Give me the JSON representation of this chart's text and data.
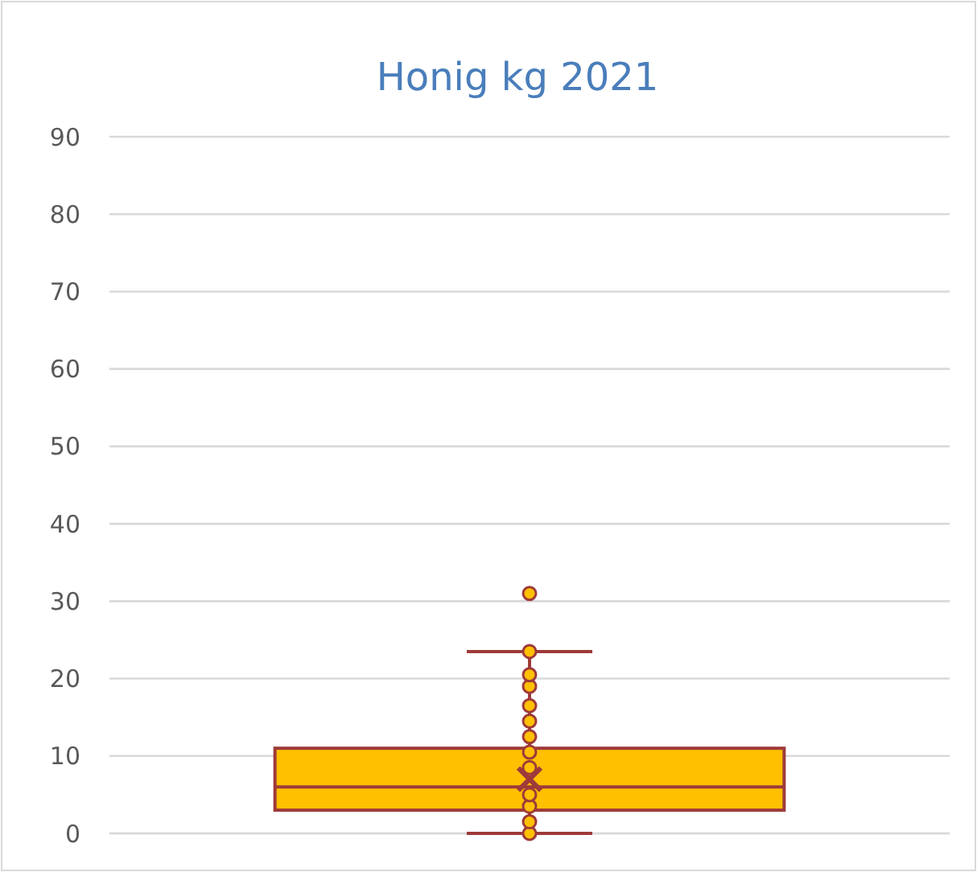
{
  "chart_data": {
    "type": "box",
    "title": "Honig kg 2021",
    "categories": [
      null
    ],
    "series": [
      {
        "color": "#ffc000",
        "boxes": [
          {
            "low": 0,
            "q1": 3,
            "median": 6,
            "q3": 11,
            "high": 23.5,
            "mean": 7,
            "outliers": [
              31
            ]
          }
        ]
      },
      {
        "type": "scatter",
        "color": "#ffc000",
        "x": [
          null,
          null,
          null,
          null,
          null,
          null,
          null,
          null,
          null,
          null,
          null,
          null
        ],
        "values": [
          0,
          1.5,
          3.5,
          5,
          8.5,
          10.5,
          12.5,
          14.5,
          16.5,
          19,
          20.5,
          23.5
        ]
      }
    ],
    "ylim": [
      0,
      90
    ],
    "yticks": [
      0,
      10,
      20,
      30,
      40,
      50,
      60,
      70,
      80,
      90
    ],
    "grid": "y",
    "marker": "circle"
  }
}
